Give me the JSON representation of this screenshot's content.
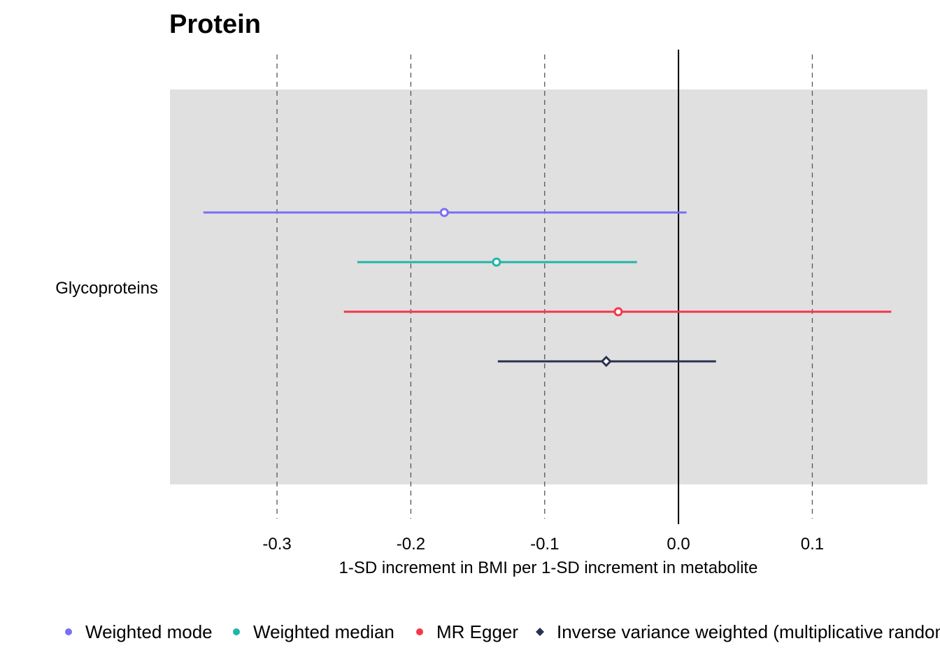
{
  "chart_data": {
    "type": "forest",
    "title": "Protein",
    "xlabel": "1-SD increment in BMI per 1-SD increment in metabolite",
    "xlim": [
      -0.38,
      0.186
    ],
    "x_ticks": [
      -0.3,
      -0.2,
      -0.1,
      0.0,
      0.1
    ],
    "x_tick_labels": [
      "-0.3",
      "-0.2",
      "-0.1",
      "0.0",
      "0.1"
    ],
    "grid": "dashed vertical",
    "reference_line": 0.0,
    "legend_position": "bottom",
    "categories": [
      "Glycoproteins"
    ],
    "series": [
      {
        "name": "Weighted mode",
        "color": "#7B6EF6",
        "marker": "circle",
        "estimate": -0.175,
        "lower": -0.355,
        "upper": 0.006
      },
      {
        "name": "Weighted median",
        "color": "#1FB5AC",
        "marker": "circle",
        "estimate": -0.136,
        "lower": -0.24,
        "upper": -0.031
      },
      {
        "name": "MR Egger",
        "color": "#F2384A",
        "marker": "circle",
        "estimate": -0.045,
        "lower": -0.25,
        "upper": 0.159
      },
      {
        "name": "Inverse variance weighted (multiplicative random effects)",
        "color": "#2B3150",
        "marker": "diamond",
        "estimate": -0.054,
        "lower": -0.135,
        "upper": 0.028
      }
    ]
  }
}
